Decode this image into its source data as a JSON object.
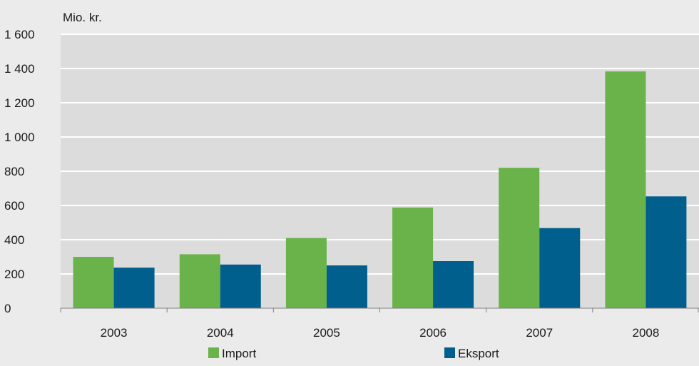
{
  "chart_data": {
    "type": "bar",
    "ylabel": "Mio. kr.",
    "categories": [
      "2003",
      "2004",
      "2005",
      "2006",
      "2007",
      "2008"
    ],
    "series": [
      {
        "name": "Import",
        "values": [
          300,
          315,
          410,
          588,
          820,
          1383
        ],
        "color": "#6ab24a"
      },
      {
        "name": "Eksport",
        "values": [
          237,
          255,
          250,
          275,
          468,
          653
        ],
        "color": "#005f8c"
      }
    ],
    "ylim": [
      0,
      1600
    ],
    "yticks": [
      0,
      200,
      400,
      600,
      800,
      1000,
      1200,
      1400,
      1600
    ],
    "ytick_labels": [
      "0",
      "200",
      "400",
      "600",
      "800",
      "1 000",
      "1 200",
      "1 400",
      "1 600"
    ],
    "grid": true,
    "legend_position": "bottom"
  },
  "colors": {
    "plot_background": "#dcdcdc",
    "page_background": "#ebebeb",
    "gridline": "#ffffff",
    "axis": "#7f7f7f"
  }
}
